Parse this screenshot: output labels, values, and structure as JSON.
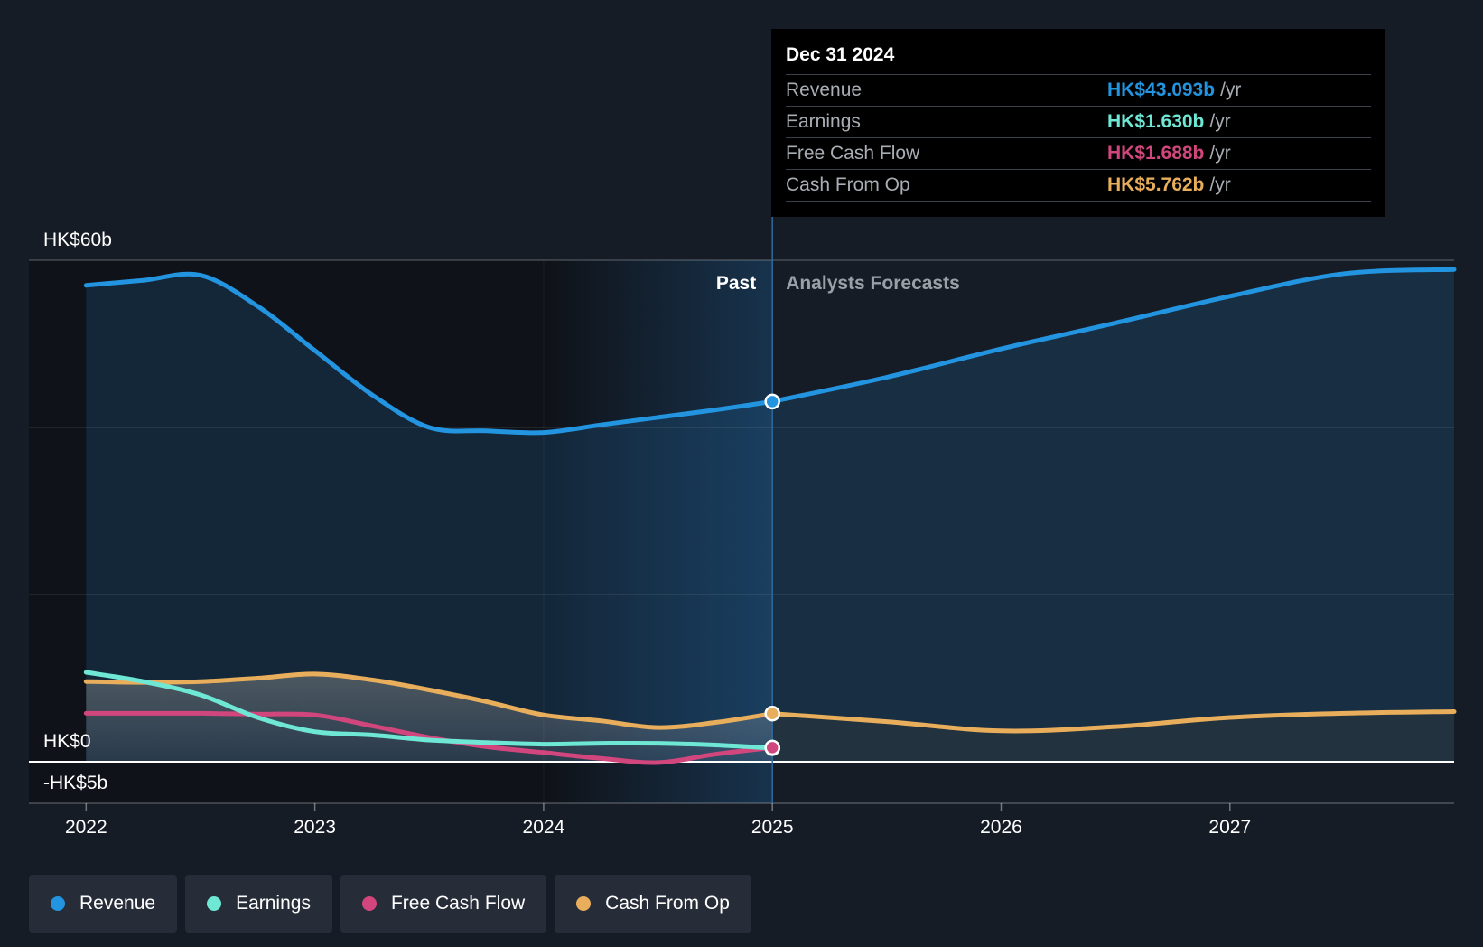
{
  "chart_data": {
    "type": "area",
    "y_unit": "HK$ billions",
    "ylim": [
      -5,
      60
    ],
    "y_tick_labels": [
      {
        "value": 60,
        "label": "HK$60b"
      },
      {
        "value": 0,
        "label": "HK$0"
      },
      {
        "value": -5,
        "label": "-HK$5b"
      }
    ],
    "x_ticks": [
      {
        "value": 2022,
        "label": "2022"
      },
      {
        "value": 2023,
        "label": "2023"
      },
      {
        "value": 2024,
        "label": "2024"
      },
      {
        "value": 2025,
        "label": "2025"
      },
      {
        "value": 2026,
        "label": "2026"
      },
      {
        "value": 2027,
        "label": "2027"
      }
    ],
    "xlim": [
      2021.75,
      2027.98
    ],
    "past_label": "Past",
    "forecast_label": "Analysts Forecasts",
    "past_end": 2025,
    "highlight_start": 2024,
    "series": [
      {
        "name": "Revenue",
        "color": "#2394df",
        "past": [
          [
            2022,
            57
          ],
          [
            2022.25,
            57.6
          ],
          [
            2022.5,
            58.2
          ],
          [
            2022.75,
            54.5
          ],
          [
            2023,
            49.2
          ],
          [
            2023.25,
            43.9
          ],
          [
            2023.5,
            40
          ],
          [
            2023.75,
            39.6
          ],
          [
            2024,
            39.4
          ],
          [
            2024.25,
            40.3
          ],
          [
            2024.5,
            41.2
          ],
          [
            2024.75,
            42.1
          ],
          [
            2025,
            43.09
          ]
        ],
        "forecast": [
          [
            2025,
            43.09
          ],
          [
            2025.5,
            46
          ],
          [
            2026,
            49.4
          ],
          [
            2026.5,
            52.5
          ],
          [
            2027,
            55.7
          ],
          [
            2027.5,
            58.4
          ],
          [
            2027.98,
            58.9
          ]
        ]
      },
      {
        "name": "Cash From Op",
        "color": "#e9ae5b",
        "past": [
          [
            2022,
            9.6
          ],
          [
            2022.25,
            9.5
          ],
          [
            2022.5,
            9.6
          ],
          [
            2022.75,
            10
          ],
          [
            2023,
            10.5
          ],
          [
            2023.25,
            9.8
          ],
          [
            2023.5,
            8.6
          ],
          [
            2023.75,
            7.2
          ],
          [
            2024,
            5.6
          ],
          [
            2024.25,
            4.9
          ],
          [
            2024.5,
            4.1
          ],
          [
            2024.75,
            4.7
          ],
          [
            2025,
            5.76
          ]
        ],
        "forecast": [
          [
            2025,
            5.76
          ],
          [
            2025.5,
            4.8
          ],
          [
            2026,
            3.7
          ],
          [
            2026.5,
            4.2
          ],
          [
            2027,
            5.3
          ],
          [
            2027.5,
            5.8
          ],
          [
            2027.98,
            6
          ]
        ]
      },
      {
        "name": "Free Cash Flow",
        "color": "#d1467c",
        "past": [
          [
            2022,
            5.8
          ],
          [
            2022.25,
            5.8
          ],
          [
            2022.5,
            5.8
          ],
          [
            2022.75,
            5.7
          ],
          [
            2023,
            5.6
          ],
          [
            2023.25,
            4.3
          ],
          [
            2023.5,
            2.9
          ],
          [
            2023.75,
            1.8
          ],
          [
            2024,
            1.1
          ],
          [
            2024.25,
            0.4
          ],
          [
            2024.5,
            -0.1
          ],
          [
            2024.75,
            0.9
          ],
          [
            2025,
            1.69
          ]
        ],
        "forecast": []
      },
      {
        "name": "Earnings",
        "color": "#6ee7d4",
        "past": [
          [
            2022,
            10.7
          ],
          [
            2022.25,
            9.6
          ],
          [
            2022.5,
            8
          ],
          [
            2022.75,
            5.3
          ],
          [
            2023,
            3.6
          ],
          [
            2023.25,
            3.2
          ],
          [
            2023.5,
            2.6
          ],
          [
            2023.75,
            2.3
          ],
          [
            2024,
            2.1
          ],
          [
            2024.25,
            2.2
          ],
          [
            2024.5,
            2.2
          ],
          [
            2024.75,
            2
          ],
          [
            2025,
            1.63
          ]
        ],
        "forecast": []
      }
    ],
    "tooltip": {
      "date": "Dec 31 2024",
      "rows": [
        {
          "label": "Revenue",
          "value": "HK$43.093b",
          "unit": "/yr",
          "color": "#2394df"
        },
        {
          "label": "Earnings",
          "value": "HK$1.630b",
          "unit": "/yr",
          "color": "#6ee7d4"
        },
        {
          "label": "Free Cash Flow",
          "value": "HK$1.688b",
          "unit": "/yr",
          "color": "#d1467c"
        },
        {
          "label": "Cash From Op",
          "value": "HK$5.762b",
          "unit": "/yr",
          "color": "#e9ae5b"
        }
      ]
    },
    "legend": [
      {
        "name": "Revenue",
        "color": "#2394df"
      },
      {
        "name": "Earnings",
        "color": "#6ee7d4"
      },
      {
        "name": "Free Cash Flow",
        "color": "#d1467c"
      },
      {
        "name": "Cash From Op",
        "color": "#e9ae5b"
      }
    ]
  }
}
